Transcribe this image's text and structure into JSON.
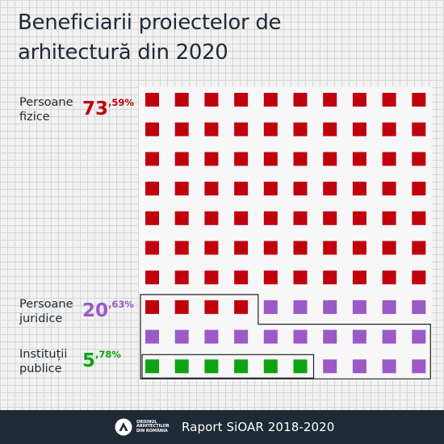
{
  "chart_data": {
    "type": "waffle",
    "title": "Beneficiarii proiectelor de arhitectură din 2020",
    "grid": {
      "columns": 10,
      "rows": 10
    },
    "series": [
      {
        "name": "Persoane fizice",
        "label": "Persoane\nfizice",
        "value_int": "73",
        "value_dec": ",59%",
        "value": 73.59,
        "squares": 74,
        "color": "#c0000d"
      },
      {
        "name": "Persoane juridice",
        "label": "Persoane\njuridice",
        "value_int": "20",
        "value_dec": ",63%",
        "value": 20.63,
        "squares": 20,
        "color": "#9b59c6"
      },
      {
        "name": "Instituții publice",
        "label": "Instituții\npublice",
        "value_int": "5",
        "value_dec": ",78%",
        "value": 5.78,
        "squares": 6,
        "color": "#0da312"
      }
    ]
  },
  "footer": {
    "logo_lines": [
      "ORDINUL",
      "ARHITECȚILOR",
      "DIN ROMÂNIA"
    ],
    "text": "Raport SiOAR 2018-2020",
    "background": "#1e2a36"
  }
}
